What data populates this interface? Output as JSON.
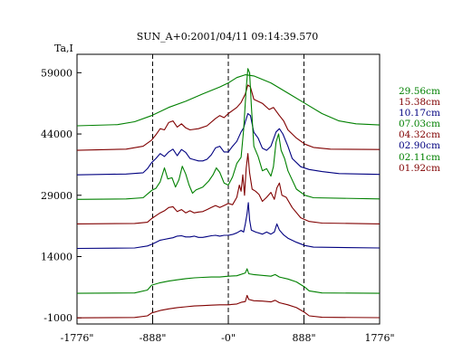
{
  "chart_data": {
    "type": "line",
    "title": "SUN_A+0:2001/04/11 09:14:39.570",
    "ylabel": "Ta,I",
    "xlabel": "",
    "x_range": [
      -1776,
      1776
    ],
    "y_range": [
      -2500,
      63500
    ],
    "x_tick_labels": [
      {
        "value": -1776,
        "label": "-1776\""
      },
      {
        "value": -888,
        "label": "-888\""
      },
      {
        "value": 0,
        "label": "-0\""
      },
      {
        "value": 888,
        "label": "888\""
      },
      {
        "value": 1776,
        "label": "1776\""
      }
    ],
    "y_tick_labels": [
      {
        "value": 59000,
        "label": "59000"
      },
      {
        "value": 44000,
        "label": "44000"
      },
      {
        "value": 29000,
        "label": "29000"
      },
      {
        "value": 14000,
        "label": "14000"
      },
      {
        "value": -1000,
        "label": "-1000"
      }
    ],
    "dashed_vertical_lines_at": [
      -888,
      0,
      888
    ],
    "grid": false,
    "legend_position": "right",
    "series": [
      {
        "name": "29.56cm",
        "color": "#008000",
        "points": [
          [
            -1776,
            46000
          ],
          [
            -1300,
            46300
          ],
          [
            -1100,
            47000
          ],
          [
            -900,
            48500
          ],
          [
            -700,
            50500
          ],
          [
            -500,
            52000
          ],
          [
            -300,
            53800
          ],
          [
            -100,
            55500
          ],
          [
            0,
            56500
          ],
          [
            100,
            57800
          ],
          [
            200,
            58500
          ],
          [
            300,
            58200
          ],
          [
            500,
            56500
          ],
          [
            700,
            54000
          ],
          [
            900,
            51500
          ],
          [
            1100,
            49000
          ],
          [
            1300,
            47200
          ],
          [
            1500,
            46500
          ],
          [
            1776,
            46200
          ]
        ]
      },
      {
        "name": "15.38cm",
        "color": "#800000",
        "points": [
          [
            -1776,
            40000
          ],
          [
            -1200,
            40300
          ],
          [
            -1000,
            41000
          ],
          [
            -900,
            42500
          ],
          [
            -850,
            43800
          ],
          [
            -800,
            45300
          ],
          [
            -750,
            45000
          ],
          [
            -700,
            46800
          ],
          [
            -650,
            47200
          ],
          [
            -600,
            45700
          ],
          [
            -550,
            46500
          ],
          [
            -500,
            45500
          ],
          [
            -450,
            45000
          ],
          [
            -350,
            45300
          ],
          [
            -250,
            46000
          ],
          [
            -150,
            47800
          ],
          [
            -100,
            48500
          ],
          [
            -50,
            48000
          ],
          [
            0,
            49000
          ],
          [
            100,
            50500
          ],
          [
            150,
            51700
          ],
          [
            200,
            53800
          ],
          [
            230,
            56000
          ],
          [
            260,
            55500
          ],
          [
            300,
            52500
          ],
          [
            400,
            51500
          ],
          [
            480,
            50000
          ],
          [
            530,
            50500
          ],
          [
            600,
            48500
          ],
          [
            650,
            47200
          ],
          [
            700,
            45000
          ],
          [
            800,
            43000
          ],
          [
            900,
            41500
          ],
          [
            1000,
            40700
          ],
          [
            1200,
            40300
          ],
          [
            1776,
            40200
          ]
        ]
      },
      {
        "name": "10.17cm",
        "color": "#000080",
        "points": [
          [
            -1776,
            34000
          ],
          [
            -1200,
            34200
          ],
          [
            -1000,
            34500
          ],
          [
            -950,
            35500
          ],
          [
            -900,
            37000
          ],
          [
            -850,
            38000
          ],
          [
            -800,
            39200
          ],
          [
            -750,
            38500
          ],
          [
            -700,
            39600
          ],
          [
            -650,
            40300
          ],
          [
            -600,
            38700
          ],
          [
            -550,
            40200
          ],
          [
            -500,
            39500
          ],
          [
            -450,
            38000
          ],
          [
            -400,
            37700
          ],
          [
            -350,
            37400
          ],
          [
            -300,
            37400
          ],
          [
            -250,
            37800
          ],
          [
            -200,
            38900
          ],
          [
            -150,
            40600
          ],
          [
            -100,
            41000
          ],
          [
            -50,
            39600
          ],
          [
            0,
            39600
          ],
          [
            50,
            41000
          ],
          [
            100,
            42200
          ],
          [
            150,
            44500
          ],
          [
            180,
            45500
          ],
          [
            200,
            47000
          ],
          [
            230,
            49000
          ],
          [
            260,
            48500
          ],
          [
            300,
            44400
          ],
          [
            350,
            43000
          ],
          [
            400,
            40500
          ],
          [
            450,
            40000
          ],
          [
            500,
            41000
          ],
          [
            560,
            44500
          ],
          [
            600,
            45300
          ],
          [
            640,
            44000
          ],
          [
            700,
            41000
          ],
          [
            750,
            38000
          ],
          [
            850,
            36000
          ],
          [
            950,
            35300
          ],
          [
            1100,
            34800
          ],
          [
            1300,
            34300
          ],
          [
            1776,
            34100
          ]
        ]
      },
      {
        "name": "07.03cm",
        "color": "#008000",
        "points": [
          [
            -1776,
            28000
          ],
          [
            -1200,
            28100
          ],
          [
            -1000,
            28400
          ],
          [
            -950,
            29300
          ],
          [
            -900,
            30200
          ],
          [
            -850,
            30700
          ],
          [
            -800,
            32300
          ],
          [
            -750,
            35700
          ],
          [
            -710,
            33000
          ],
          [
            -660,
            33300
          ],
          [
            -620,
            31000
          ],
          [
            -580,
            32800
          ],
          [
            -540,
            36100
          ],
          [
            -500,
            34200
          ],
          [
            -460,
            31500
          ],
          [
            -420,
            29500
          ],
          [
            -380,
            30300
          ],
          [
            -300,
            31000
          ],
          [
            -230,
            32500
          ],
          [
            -180,
            34000
          ],
          [
            -140,
            35700
          ],
          [
            -100,
            34600
          ],
          [
            -50,
            32000
          ],
          [
            0,
            31500
          ],
          [
            50,
            33500
          ],
          [
            100,
            36800
          ],
          [
            150,
            38300
          ],
          [
            180,
            45000
          ],
          [
            210,
            55000
          ],
          [
            230,
            60000
          ],
          [
            250,
            59000
          ],
          [
            270,
            51000
          ],
          [
            300,
            41000
          ],
          [
            350,
            38500
          ],
          [
            400,
            35000
          ],
          [
            450,
            35500
          ],
          [
            500,
            33700
          ],
          [
            530,
            36000
          ],
          [
            560,
            42000
          ],
          [
            590,
            44000
          ],
          [
            620,
            40000
          ],
          [
            660,
            38000
          ],
          [
            700,
            35000
          ],
          [
            800,
            30500
          ],
          [
            900,
            29000
          ],
          [
            1000,
            28400
          ],
          [
            1776,
            28100
          ]
        ]
      },
      {
        "name": "04.32cm",
        "color": "#800000",
        "points": [
          [
            -1776,
            22000
          ],
          [
            -1100,
            22100
          ],
          [
            -950,
            22400
          ],
          [
            -900,
            23300
          ],
          [
            -850,
            24000
          ],
          [
            -800,
            24700
          ],
          [
            -750,
            25200
          ],
          [
            -700,
            26000
          ],
          [
            -650,
            26200
          ],
          [
            -600,
            25000
          ],
          [
            -550,
            25500
          ],
          [
            -500,
            24700
          ],
          [
            -450,
            25200
          ],
          [
            -400,
            24700
          ],
          [
            -350,
            24900
          ],
          [
            -300,
            25000
          ],
          [
            -250,
            25500
          ],
          [
            -200,
            26000
          ],
          [
            -150,
            26500
          ],
          [
            -100,
            26000
          ],
          [
            -50,
            26500
          ],
          [
            0,
            27000
          ],
          [
            50,
            26700
          ],
          [
            100,
            28500
          ],
          [
            130,
            31500
          ],
          [
            150,
            30000
          ],
          [
            170,
            34000
          ],
          [
            190,
            29000
          ],
          [
            210,
            35500
          ],
          [
            230,
            39200
          ],
          [
            250,
            34500
          ],
          [
            280,
            30500
          ],
          [
            320,
            30000
          ],
          [
            360,
            29200
          ],
          [
            400,
            27500
          ],
          [
            450,
            28500
          ],
          [
            500,
            29700
          ],
          [
            540,
            28000
          ],
          [
            570,
            30800
          ],
          [
            600,
            32000
          ],
          [
            630,
            29000
          ],
          [
            680,
            28500
          ],
          [
            750,
            26000
          ],
          [
            850,
            23500
          ],
          [
            950,
            22600
          ],
          [
            1100,
            22200
          ],
          [
            1776,
            22000
          ]
        ]
      },
      {
        "name": "02.90cm",
        "color": "#000080",
        "points": [
          [
            -1776,
            16000
          ],
          [
            -1100,
            16100
          ],
          [
            -950,
            16600
          ],
          [
            -900,
            17000
          ],
          [
            -850,
            17500
          ],
          [
            -800,
            18000
          ],
          [
            -750,
            18200
          ],
          [
            -700,
            18400
          ],
          [
            -650,
            18600
          ],
          [
            -600,
            19000
          ],
          [
            -550,
            19100
          ],
          [
            -500,
            18800
          ],
          [
            -450,
            18800
          ],
          [
            -400,
            19000
          ],
          [
            -350,
            18700
          ],
          [
            -300,
            18700
          ],
          [
            -250,
            18900
          ],
          [
            -200,
            19100
          ],
          [
            -150,
            19200
          ],
          [
            -100,
            19000
          ],
          [
            -50,
            19200
          ],
          [
            0,
            19200
          ],
          [
            50,
            19400
          ],
          [
            100,
            19800
          ],
          [
            150,
            20400
          ],
          [
            180,
            20000
          ],
          [
            200,
            22000
          ],
          [
            220,
            24500
          ],
          [
            235,
            27200
          ],
          [
            250,
            23000
          ],
          [
            270,
            20500
          ],
          [
            320,
            20000
          ],
          [
            400,
            19500
          ],
          [
            450,
            20000
          ],
          [
            500,
            19500
          ],
          [
            540,
            20000
          ],
          [
            570,
            22000
          ],
          [
            600,
            20500
          ],
          [
            650,
            19300
          ],
          [
            700,
            18500
          ],
          [
            800,
            17500
          ],
          [
            900,
            16700
          ],
          [
            1000,
            16300
          ],
          [
            1776,
            16100
          ]
        ]
      },
      {
        "name": "02.11cm",
        "color": "#008000",
        "points": [
          [
            -1776,
            5000
          ],
          [
            -1100,
            5100
          ],
          [
            -950,
            5800
          ],
          [
            -900,
            7000
          ],
          [
            -800,
            7600
          ],
          [
            -700,
            8000
          ],
          [
            -600,
            8300
          ],
          [
            -500,
            8600
          ],
          [
            -400,
            8800
          ],
          [
            -300,
            8900
          ],
          [
            -200,
            9000
          ],
          [
            -100,
            9000
          ],
          [
            0,
            9200
          ],
          [
            100,
            9300
          ],
          [
            200,
            10000
          ],
          [
            220,
            11000
          ],
          [
            240,
            9800
          ],
          [
            300,
            9600
          ],
          [
            400,
            9400
          ],
          [
            500,
            9200
          ],
          [
            550,
            9600
          ],
          [
            600,
            9000
          ],
          [
            700,
            8500
          ],
          [
            800,
            7800
          ],
          [
            900,
            6500
          ],
          [
            950,
            5600
          ],
          [
            1100,
            5100
          ],
          [
            1776,
            5000
          ]
        ]
      },
      {
        "name": "01.92cm",
        "color": "#800000",
        "points": [
          [
            -1776,
            -1000
          ],
          [
            -1100,
            -900
          ],
          [
            -950,
            -500
          ],
          [
            -900,
            200
          ],
          [
            -800,
            800
          ],
          [
            -700,
            1200
          ],
          [
            -600,
            1500
          ],
          [
            -500,
            1700
          ],
          [
            -400,
            1900
          ],
          [
            -300,
            2000
          ],
          [
            -200,
            2100
          ],
          [
            -100,
            2200
          ],
          [
            0,
            2200
          ],
          [
            100,
            2400
          ],
          [
            150,
            2800
          ],
          [
            200,
            3000
          ],
          [
            220,
            4500
          ],
          [
            240,
            3500
          ],
          [
            300,
            3200
          ],
          [
            400,
            3100
          ],
          [
            500,
            2900
          ],
          [
            550,
            3300
          ],
          [
            600,
            2700
          ],
          [
            700,
            2200
          ],
          [
            800,
            1500
          ],
          [
            900,
            300
          ],
          [
            950,
            -500
          ],
          [
            1100,
            -850
          ],
          [
            1776,
            -950
          ]
        ]
      }
    ]
  }
}
